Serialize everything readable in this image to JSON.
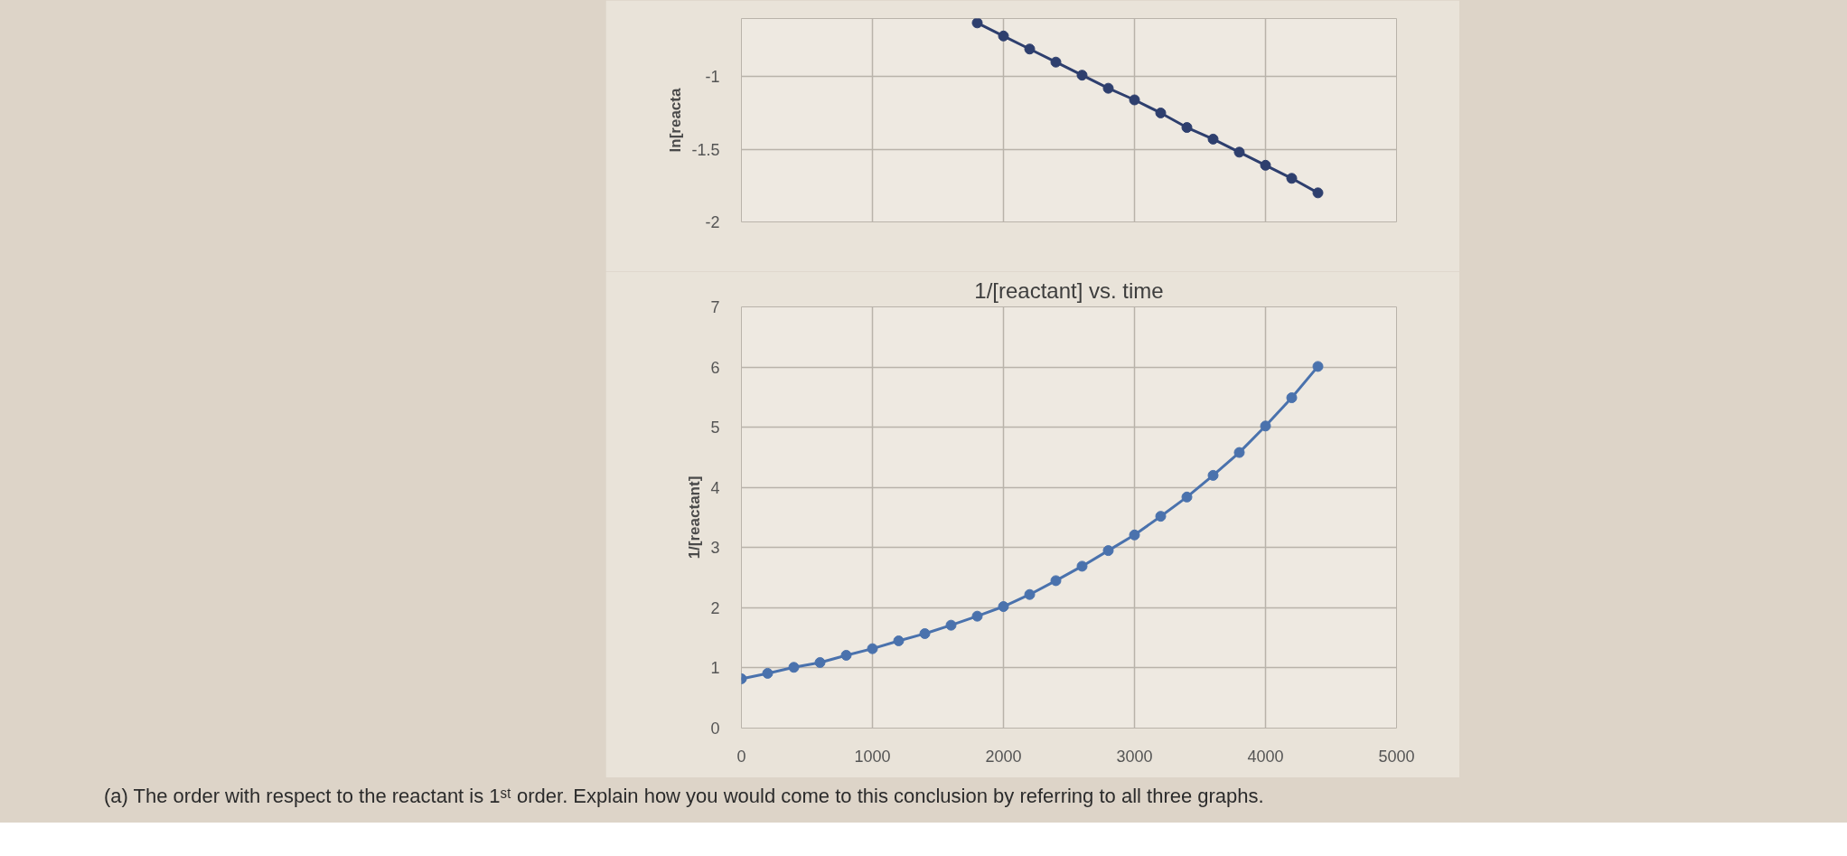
{
  "chart_data": [
    {
      "type": "line",
      "ylabel": "ln[reacta",
      "x": [
        1800,
        2000,
        2200,
        2400,
        2600,
        2800,
        3000,
        3200,
        3400,
        3600,
        3800,
        4000,
        4200,
        4400
      ],
      "values": [
        -0.63,
        -0.72,
        -0.81,
        -0.9,
        -0.99,
        -1.08,
        -1.16,
        -1.25,
        -1.35,
        -1.43,
        -1.52,
        -1.61,
        -1.7,
        -1.8
      ],
      "color": "#2e3f6e",
      "xlim": [
        0,
        5000
      ],
      "xticks": [
        {
          "value": 0,
          "label": null
        },
        {
          "value": 1000,
          "label": null
        },
        {
          "value": 2000,
          "label": null
        },
        {
          "value": 3000,
          "label": null
        },
        {
          "value": 4000,
          "label": null
        },
        {
          "value": 5000,
          "label": null
        }
      ],
      "ylim": [
        -2,
        -0.6
      ],
      "yticks": [
        -2,
        -1.5,
        -1
      ],
      "grid": true,
      "marker": "circle",
      "line_style": "solid",
      "tick_labels": "y"
    },
    {
      "type": "line",
      "title": "1/[reactant] vs. time",
      "ylabel": "1/[reactant]",
      "x": [
        0,
        200,
        400,
        600,
        800,
        1000,
        1200,
        1400,
        1600,
        1800,
        2000,
        2200,
        2400,
        2600,
        2800,
        3000,
        3200,
        3400,
        3600,
        3800,
        4000,
        4200,
        4400
      ],
      "values": [
        0.82,
        0.91,
        1.01,
        1.09,
        1.21,
        1.32,
        1.45,
        1.57,
        1.71,
        1.86,
        2.02,
        2.22,
        2.45,
        2.69,
        2.95,
        3.21,
        3.52,
        3.84,
        4.2,
        4.58,
        5.02,
        5.49,
        6.01
      ],
      "color": "#4a72ad",
      "xlim": [
        0,
        5000
      ],
      "xticks": [
        0,
        1000,
        2000,
        3000,
        4000,
        5000
      ],
      "ylim": [
        0,
        7
      ],
      "yticks": [
        0,
        1,
        2,
        3,
        4,
        5,
        6,
        7
      ],
      "grid": true,
      "marker": "circle",
      "line_style": "solid",
      "annotations": [
        "(a) The order with respect to the reactant is 1ˢᵗ order. Explain how you would come to this conclusion by referring to all three graphs."
      ]
    }
  ]
}
